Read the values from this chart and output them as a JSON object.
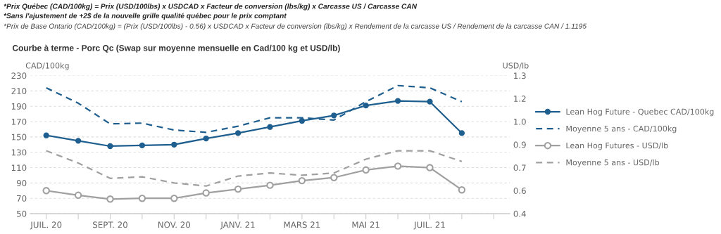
{
  "chart_data": {
    "type": "line",
    "title": "Courbe à terme - Porc Qc (Swap sur moyenne mensuelle en Cad/100 kg et USD/lb)",
    "annotations": [
      "*Prix Québec (CAD/100kg) = Prix (USD/100lbs) x USDCAD x Facteur de conversion (lbs/kg) x Carcasse US / Carcasse CAN",
      "*Sans l'ajustement de +2$ de la nouvelle grille qualité québec pour le prix comptant",
      "*Prix de Base Ontario (CAD/100kg) = (Prix (USD/100lbs) - 0.56) x USDCAD x Facteur de conversion (lbs/kg) x Rendement de la carcasse US / Rendement de la carcasse CAN / 1.1195"
    ],
    "ylabel": "CAD/100kg",
    "y2label": "USD/lb",
    "categories": [
      "JUIL. 20",
      null,
      "SEPT. 20",
      null,
      "NOV. 20",
      null,
      "JANV. 21",
      null,
      "MARS 21",
      null,
      "MAI 21",
      null,
      "JUIL. 21",
      null,
      null
    ],
    "series": [
      {
        "name": "Lean Hog Future - Quebec CAD/100kg",
        "color": "#1f5f8f",
        "marker": "circle",
        "line_style": "solid",
        "values": [
          152,
          145,
          138,
          139,
          140,
          148,
          155,
          163,
          171,
          178,
          191,
          197,
          196,
          155,
          null
        ]
      },
      {
        "name": "Moyenne 5 ans - CAD/100kg",
        "color": "#1f5f8f",
        "marker": "none",
        "line_style": "dashed",
        "values": [
          214,
          194,
          167,
          168,
          159,
          156,
          164,
          175,
          175,
          172,
          196,
          217,
          214,
          196,
          null
        ]
      },
      {
        "name": "Lean Hog Futures - USD/lb",
        "color": "#a0a0a0",
        "marker": "circle",
        "line_style": "solid",
        "axis": "y2",
        "values": [
          0.55,
          0.52,
          0.495,
          0.5,
          0.5,
          0.535,
          0.56,
          0.585,
          0.615,
          0.635,
          0.685,
          0.71,
          0.7,
          0.555,
          null
        ]
      },
      {
        "name": "Moyenne 5 ans - USD/lb",
        "color": "#a0a0a0",
        "marker": "none",
        "line_style": "dashed",
        "axis": "y2",
        "values": [
          0.81,
          0.73,
          0.63,
          0.64,
          0.6,
          0.58,
          0.645,
          0.665,
          0.65,
          0.665,
          0.755,
          0.81,
          0.81,
          0.74,
          null
        ]
      }
    ],
    "ylim": [
      50,
      230
    ],
    "yticks": [
      50,
      70,
      90,
      110,
      130,
      150,
      170,
      190,
      210,
      230
    ],
    "y2lim": [
      0.4,
      1.3
    ],
    "y2ticks": [
      0.4,
      {
        "value": 0.55,
        "label": "0.6"
      },
      0.7,
      {
        "value": 0.85,
        "label": "0.9"
      },
      {
        "value": 1.0,
        "label": "1.0"
      },
      {
        "value": 1.15,
        "label": "1.2"
      },
      1.3
    ],
    "grid": "y",
    "legend": "right"
  }
}
